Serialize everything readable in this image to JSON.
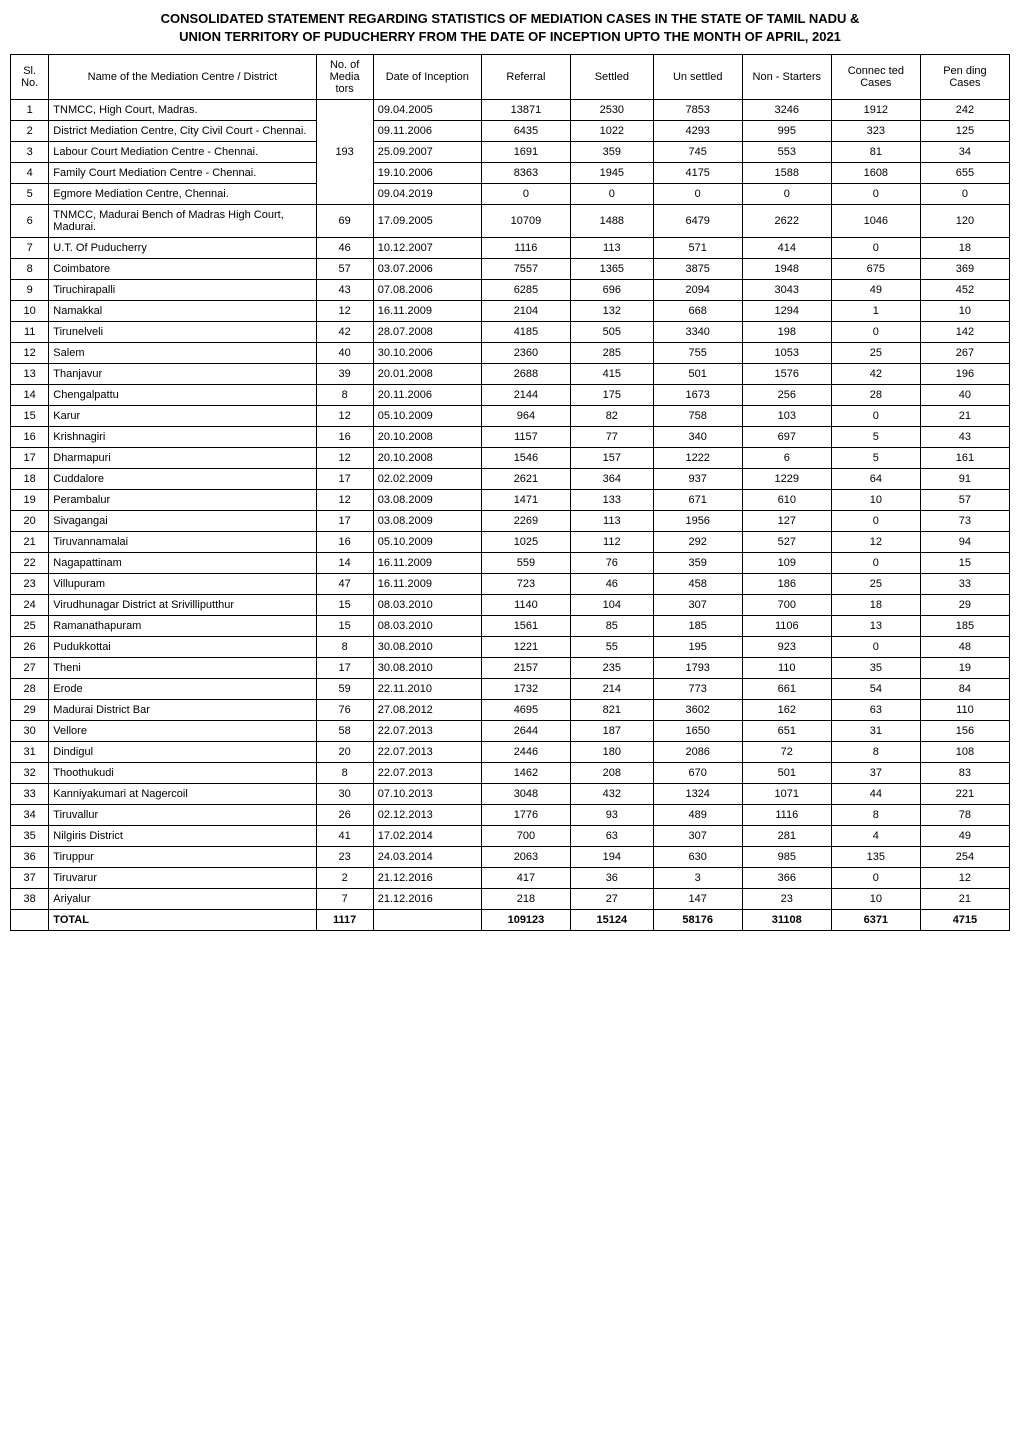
{
  "title_line1": "CONSOLIDATED STATEMENT REGARDING STATISTICS OF MEDIATION CASES IN THE STATE OF TAMIL NADU &",
  "title_line2": "UNION TERRITORY OF PUDUCHERRY FROM THE DATE OF INCEPTION UPTO THE MONTH OF APRIL, 2021",
  "headers": {
    "sl_no": "Sl. No.",
    "name": "Name of the Mediation Centre / District",
    "mediators": "No. of Media tors",
    "inception": "Date of Inception",
    "referral": "Referral",
    "settled": "Settled",
    "unsettled": "Un settled",
    "nonstarters": "Non - Starters",
    "connected": "Connec ted Cases",
    "pending": "Pen ding Cases"
  },
  "merged_mediators": "193",
  "rows": [
    {
      "sl": "1",
      "name": "TNMCC, High Court, Madras.",
      "mediators": "",
      "date": "09.04.2005",
      "referral": "13871",
      "settled": "2530",
      "unsettled": "7853",
      "nonstarters": "3246",
      "connected": "1912",
      "pending": "242"
    },
    {
      "sl": "2",
      "name": "District Mediation Centre, City Civil Court - Chennai.",
      "mediators": "",
      "date": "09.11.2006",
      "referral": "6435",
      "settled": "1022",
      "unsettled": "4293",
      "nonstarters": "995",
      "connected": "323",
      "pending": "125"
    },
    {
      "sl": "3",
      "name": "Labour Court Mediation Centre - Chennai.",
      "mediators": "",
      "date": "25.09.2007",
      "referral": "1691",
      "settled": "359",
      "unsettled": "745",
      "nonstarters": "553",
      "connected": "81",
      "pending": "34"
    },
    {
      "sl": "4",
      "name": "Family Court Mediation Centre - Chennai.",
      "mediators": "",
      "date": "19.10.2006",
      "referral": "8363",
      "settled": "1945",
      "unsettled": "4175",
      "nonstarters": "1588",
      "connected": "1608",
      "pending": "655"
    },
    {
      "sl": "5",
      "name": "Egmore Mediation Centre, Chennai.",
      "mediators": "",
      "date": "09.04.2019",
      "referral": "0",
      "settled": "0",
      "unsettled": "0",
      "nonstarters": "0",
      "connected": "0",
      "pending": "0"
    },
    {
      "sl": "6",
      "name": "TNMCC, Madurai Bench of Madras High Court, Madurai.",
      "mediators": "69",
      "date": "17.09.2005",
      "referral": "10709",
      "settled": "1488",
      "unsettled": "6479",
      "nonstarters": "2622",
      "connected": "1046",
      "pending": "120"
    },
    {
      "sl": "7",
      "name": "U.T. Of Puducherry",
      "mediators": "46",
      "date": "10.12.2007",
      "referral": "1116",
      "settled": "113",
      "unsettled": "571",
      "nonstarters": "414",
      "connected": "0",
      "pending": "18"
    },
    {
      "sl": "8",
      "name": "Coimbatore",
      "mediators": "57",
      "date": "03.07.2006",
      "referral": "7557",
      "settled": "1365",
      "unsettled": "3875",
      "nonstarters": "1948",
      "connected": "675",
      "pending": "369"
    },
    {
      "sl": "9",
      "name": "Tiruchirapalli",
      "mediators": "43",
      "date": "07.08.2006",
      "referral": "6285",
      "settled": "696",
      "unsettled": "2094",
      "nonstarters": "3043",
      "connected": "49",
      "pending": "452"
    },
    {
      "sl": "10",
      "name": "Namakkal",
      "mediators": "12",
      "date": "16.11.2009",
      "referral": "2104",
      "settled": "132",
      "unsettled": "668",
      "nonstarters": "1294",
      "connected": "1",
      "pending": "10"
    },
    {
      "sl": "11",
      "name": "Tirunelveli",
      "mediators": "42",
      "date": "28.07.2008",
      "referral": "4185",
      "settled": "505",
      "unsettled": "3340",
      "nonstarters": "198",
      "connected": "0",
      "pending": "142"
    },
    {
      "sl": "12",
      "name": "Salem",
      "mediators": "40",
      "date": "30.10.2006",
      "referral": "2360",
      "settled": "285",
      "unsettled": "755",
      "nonstarters": "1053",
      "connected": "25",
      "pending": "267"
    },
    {
      "sl": "13",
      "name": "Thanjavur",
      "mediators": "39",
      "date": "20.01.2008",
      "referral": "2688",
      "settled": "415",
      "unsettled": "501",
      "nonstarters": "1576",
      "connected": "42",
      "pending": "196"
    },
    {
      "sl": "14",
      "name": "Chengalpattu",
      "mediators": "8",
      "date": "20.11.2006",
      "referral": "2144",
      "settled": "175",
      "unsettled": "1673",
      "nonstarters": "256",
      "connected": "28",
      "pending": "40"
    },
    {
      "sl": "15",
      "name": "Karur",
      "mediators": "12",
      "date": "05.10.2009",
      "referral": "964",
      "settled": "82",
      "unsettled": "758",
      "nonstarters": "103",
      "connected": "0",
      "pending": "21"
    },
    {
      "sl": "16",
      "name": "Krishnagiri",
      "mediators": "16",
      "date": "20.10.2008",
      "referral": "1157",
      "settled": "77",
      "unsettled": "340",
      "nonstarters": "697",
      "connected": "5",
      "pending": "43"
    },
    {
      "sl": "17",
      "name": "Dharmapuri",
      "mediators": "12",
      "date": "20.10.2008",
      "referral": "1546",
      "settled": "157",
      "unsettled": "1222",
      "nonstarters": "6",
      "connected": "5",
      "pending": "161"
    },
    {
      "sl": "18",
      "name": "Cuddalore",
      "mediators": "17",
      "date": "02.02.2009",
      "referral": "2621",
      "settled": "364",
      "unsettled": "937",
      "nonstarters": "1229",
      "connected": "64",
      "pending": "91"
    },
    {
      "sl": "19",
      "name": "Perambalur",
      "mediators": "12",
      "date": "03.08.2009",
      "referral": "1471",
      "settled": "133",
      "unsettled": "671",
      "nonstarters": "610",
      "connected": "10",
      "pending": "57"
    },
    {
      "sl": "20",
      "name": "Sivagangai",
      "mediators": "17",
      "date": "03.08.2009",
      "referral": "2269",
      "settled": "113",
      "unsettled": "1956",
      "nonstarters": "127",
      "connected": "0",
      "pending": "73"
    },
    {
      "sl": "21",
      "name": "Tiruvannamalai",
      "mediators": "16",
      "date": "05.10.2009",
      "referral": "1025",
      "settled": "112",
      "unsettled": "292",
      "nonstarters": "527",
      "connected": "12",
      "pending": "94"
    },
    {
      "sl": "22",
      "name": "Nagapattinam",
      "mediators": "14",
      "date": "16.11.2009",
      "referral": "559",
      "settled": "76",
      "unsettled": "359",
      "nonstarters": "109",
      "connected": "0",
      "pending": "15"
    },
    {
      "sl": "23",
      "name": "Villupuram",
      "mediators": "47",
      "date": "16.11.2009",
      "referral": "723",
      "settled": "46",
      "unsettled": "458",
      "nonstarters": "186",
      "connected": "25",
      "pending": "33"
    },
    {
      "sl": "24",
      "name": "Virudhunagar District at Srivilliputthur",
      "mediators": "15",
      "date": "08.03.2010",
      "referral": "1140",
      "settled": "104",
      "unsettled": "307",
      "nonstarters": "700",
      "connected": "18",
      "pending": "29"
    },
    {
      "sl": "25",
      "name": "Ramanathapuram",
      "mediators": "15",
      "date": "08.03.2010",
      "referral": "1561",
      "settled": "85",
      "unsettled": "185",
      "nonstarters": "1106",
      "connected": "13",
      "pending": "185"
    },
    {
      "sl": "26",
      "name": "Pudukkottai",
      "mediators": "8",
      "date": "30.08.2010",
      "referral": "1221",
      "settled": "55",
      "unsettled": "195",
      "nonstarters": "923",
      "connected": "0",
      "pending": "48"
    },
    {
      "sl": "27",
      "name": "Theni",
      "mediators": "17",
      "date": "30.08.2010",
      "referral": "2157",
      "settled": "235",
      "unsettled": "1793",
      "nonstarters": "110",
      "connected": "35",
      "pending": "19"
    },
    {
      "sl": "28",
      "name": "Erode",
      "mediators": "59",
      "date": "22.11.2010",
      "referral": "1732",
      "settled": "214",
      "unsettled": "773",
      "nonstarters": "661",
      "connected": "54",
      "pending": "84"
    },
    {
      "sl": "29",
      "name": "Madurai District Bar",
      "mediators": "76",
      "date": "27.08.2012",
      "referral": "4695",
      "settled": "821",
      "unsettled": "3602",
      "nonstarters": "162",
      "connected": "63",
      "pending": "110"
    },
    {
      "sl": "30",
      "name": "Vellore",
      "mediators": "58",
      "date": "22.07.2013",
      "referral": "2644",
      "settled": "187",
      "unsettled": "1650",
      "nonstarters": "651",
      "connected": "31",
      "pending": "156"
    },
    {
      "sl": "31",
      "name": "Dindigul",
      "mediators": "20",
      "date": "22.07.2013",
      "referral": "2446",
      "settled": "180",
      "unsettled": "2086",
      "nonstarters": "72",
      "connected": "8",
      "pending": "108"
    },
    {
      "sl": "32",
      "name": "Thoothukudi",
      "mediators": "8",
      "date": "22.07.2013",
      "referral": "1462",
      "settled": "208",
      "unsettled": "670",
      "nonstarters": "501",
      "connected": "37",
      "pending": "83"
    },
    {
      "sl": "33",
      "name": "Kanniyakumari at Nagercoil",
      "mediators": "30",
      "date": "07.10.2013",
      "referral": "3048",
      "settled": "432",
      "unsettled": "1324",
      "nonstarters": "1071",
      "connected": "44",
      "pending": "221"
    },
    {
      "sl": "34",
      "name": "Tiruvallur",
      "mediators": "26",
      "date": "02.12.2013",
      "referral": "1776",
      "settled": "93",
      "unsettled": "489",
      "nonstarters": "1116",
      "connected": "8",
      "pending": "78"
    },
    {
      "sl": "35",
      "name": "Nilgiris District",
      "mediators": "41",
      "date": "17.02.2014",
      "referral": "700",
      "settled": "63",
      "unsettled": "307",
      "nonstarters": "281",
      "connected": "4",
      "pending": "49"
    },
    {
      "sl": "36",
      "name": "Tiruppur",
      "mediators": "23",
      "date": "24.03.2014",
      "referral": "2063",
      "settled": "194",
      "unsettled": "630",
      "nonstarters": "985",
      "connected": "135",
      "pending": "254"
    },
    {
      "sl": "37",
      "name": "Tiruvarur",
      "mediators": "2",
      "date": "21.12.2016",
      "referral": "417",
      "settled": "36",
      "unsettled": "3",
      "nonstarters": "366",
      "connected": "0",
      "pending": "12"
    },
    {
      "sl": "38",
      "name": "Ariyalur",
      "mediators": "7",
      "date": "21.12.2016",
      "referral": "218",
      "settled": "27",
      "unsettled": "147",
      "nonstarters": "23",
      "connected": "10",
      "pending": "21"
    }
  ],
  "total": {
    "label": "TOTAL",
    "mediators": "1117",
    "date": "",
    "referral": "109123",
    "settled": "15124",
    "unsettled": "58176",
    "nonstarters": "31108",
    "connected": "6371",
    "pending": "4715"
  },
  "styling": {
    "col_widths": {
      "sl": "30px",
      "name": "210px",
      "mediators": "45px",
      "date": "85px",
      "referral": "70px",
      "settled": "65px",
      "unsettled": "70px",
      "nonstarters": "70px",
      "connected": "70px",
      "pending": "70px"
    },
    "border_color": "#000000",
    "background_color": "#ffffff",
    "text_color": "#000000",
    "font_size": 11,
    "title_font_size": 13
  }
}
